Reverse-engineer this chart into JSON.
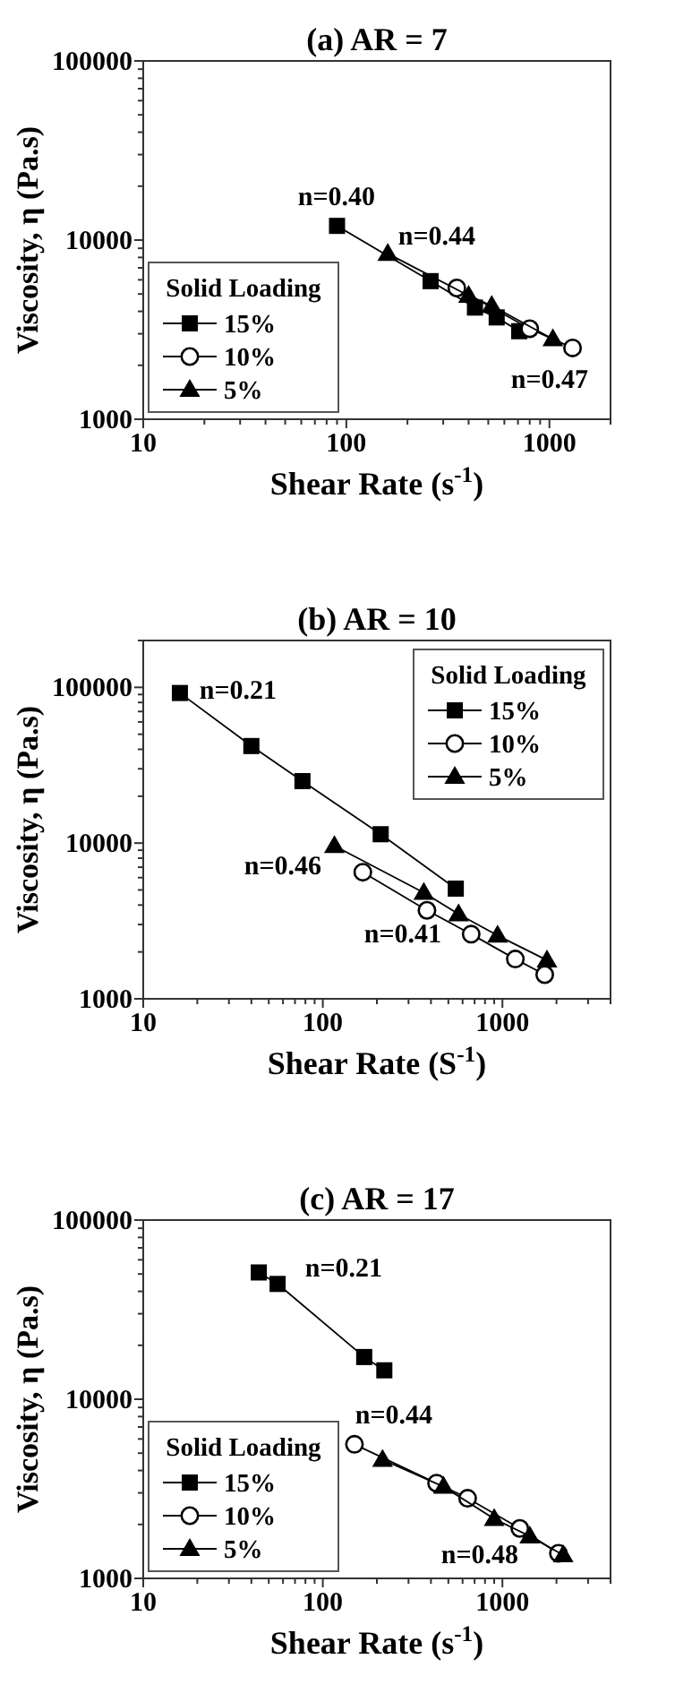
{
  "chart_data": [
    {
      "type": "line",
      "title": "(a) AR = 7",
      "xlabel": "Shear Rate (s$^{-1}$)",
      "ylabel": "Viscosity, η (Pa.s)",
      "legend_title": "Solid Loading",
      "legend": "bottom left",
      "log": "xy",
      "xlim": [
        10,
        2000
      ],
      "ylim": [
        1000,
        100000
      ],
      "xticks": [
        10,
        {
          "value": 20,
          "label": null
        },
        {
          "value": 30,
          "label": null
        },
        {
          "value": 40,
          "label": null
        },
        {
          "value": 50,
          "label": null
        },
        {
          "value": 60,
          "label": null
        },
        {
          "value": 70,
          "label": null
        },
        {
          "value": 80,
          "label": null
        },
        {
          "value": 90,
          "label": null
        },
        100,
        {
          "value": 200,
          "label": null
        },
        {
          "value": 300,
          "label": null
        },
        {
          "value": 400,
          "label": null
        },
        {
          "value": 500,
          "label": null
        },
        {
          "value": 600,
          "label": null
        },
        {
          "value": 700,
          "label": null
        },
        {
          "value": 800,
          "label": null
        },
        {
          "value": 900,
          "label": null
        },
        1000,
        {
          "value": 2000,
          "label": null
        }
      ],
      "yticks": [
        1000,
        {
          "value": 2000,
          "label": null
        },
        {
          "value": 3000,
          "label": null
        },
        {
          "value": 4000,
          "label": null
        },
        {
          "value": 5000,
          "label": null
        },
        {
          "value": 6000,
          "label": null
        },
        {
          "value": 7000,
          "label": null
        },
        {
          "value": 8000,
          "label": null
        },
        {
          "value": 9000,
          "label": null
        },
        10000,
        {
          "value": 20000,
          "label": null
        },
        {
          "value": 30000,
          "label": null
        },
        {
          "value": 40000,
          "label": null
        },
        {
          "value": 50000,
          "label": null
        },
        {
          "value": 60000,
          "label": null
        },
        {
          "value": 70000,
          "label": null
        },
        {
          "value": 80000,
          "label": null
        },
        {
          "value": 90000,
          "label": null
        },
        100000
      ],
      "series": [
        {
          "name": "15%",
          "color": "#000000",
          "marker": "square",
          "x": [
            90,
            260,
            430,
            550,
            710
          ],
          "values": [
            12000,
            5900,
            4200,
            3700,
            3100
          ]
        },
        {
          "name": "10%",
          "color": "#000000",
          "marker": "circle",
          "x": [
            350,
            800,
            1300
          ],
          "values": [
            5400,
            3200,
            2500
          ]
        },
        {
          "name": "5%",
          "color": "#000000",
          "marker": "triangle",
          "x": [
            160,
            400,
            520,
            1040
          ],
          "values": [
            8400,
            4900,
            4300,
            2800
          ]
        }
      ],
      "annotations": [
        "n=0.40",
        "n=0.44",
        "n=0.47"
      ]
    },
    {
      "type": "line",
      "title": "(b) AR = 10",
      "xlabel": "Shear Rate (S$^{-1}$)",
      "ylabel": "Viscosity, η (Pa.s)",
      "legend_title": "Solid Loading",
      "legend": "top right",
      "log": "xy",
      "xlim": [
        10,
        4000
      ],
      "ylim": [
        1000,
        200000
      ],
      "xticks": [
        10,
        {
          "value": 20,
          "label": null
        },
        {
          "value": 30,
          "label": null
        },
        {
          "value": 40,
          "label": null
        },
        {
          "value": 50,
          "label": null
        },
        {
          "value": 60,
          "label": null
        },
        {
          "value": 70,
          "label": null
        },
        {
          "value": 80,
          "label": null
        },
        {
          "value": 90,
          "label": null
        },
        100,
        {
          "value": 200,
          "label": null
        },
        {
          "value": 300,
          "label": null
        },
        {
          "value": 400,
          "label": null
        },
        {
          "value": 500,
          "label": null
        },
        {
          "value": 600,
          "label": null
        },
        {
          "value": 700,
          "label": null
        },
        {
          "value": 800,
          "label": null
        },
        {
          "value": 900,
          "label": null
        },
        1000,
        {
          "value": 2000,
          "label": null
        },
        {
          "value": 3000,
          "label": null
        },
        {
          "value": 4000,
          "label": null
        }
      ],
      "yticks": [
        1000,
        {
          "value": 2000,
          "label": null
        },
        {
          "value": 3000,
          "label": null
        },
        {
          "value": 4000,
          "label": null
        },
        {
          "value": 5000,
          "label": null
        },
        {
          "value": 6000,
          "label": null
        },
        {
          "value": 7000,
          "label": null
        },
        {
          "value": 8000,
          "label": null
        },
        {
          "value": 9000,
          "label": null
        },
        10000,
        {
          "value": 20000,
          "label": null
        },
        {
          "value": 30000,
          "label": null
        },
        {
          "value": 40000,
          "label": null
        },
        {
          "value": 50000,
          "label": null
        },
        {
          "value": 60000,
          "label": null
        },
        {
          "value": 70000,
          "label": null
        },
        {
          "value": 80000,
          "label": null
        },
        {
          "value": 90000,
          "label": null
        },
        100000,
        {
          "value": 200000,
          "label": null
        }
      ],
      "series": [
        {
          "name": "15%",
          "color": "#000000",
          "marker": "square",
          "x": [
            16,
            40,
            77,
            210,
            550
          ],
          "values": [
            92000,
            42000,
            25000,
            11400,
            5100
          ]
        },
        {
          "name": "10%",
          "color": "#000000",
          "marker": "circle",
          "x": [
            167,
            380,
            670,
            1180,
            1720
          ],
          "values": [
            6500,
            3700,
            2600,
            1800,
            1430
          ]
        },
        {
          "name": "5%",
          "color": "#000000",
          "marker": "triangle",
          "x": [
            116,
            365,
            570,
            940,
            1770
          ],
          "values": [
            9600,
            4800,
            3500,
            2550,
            1770
          ]
        }
      ],
      "annotations": [
        "n=0.21",
        "n=0.46",
        "n=0.41"
      ]
    },
    {
      "type": "line",
      "title": "(c) AR = 17",
      "xlabel": "Shear Rate (s$^{-1}$)",
      "ylabel": "Viscosity, η (Pa.s)",
      "legend_title": "Solid Loading",
      "legend": "bottom left",
      "log": "xy",
      "xlim": [
        10,
        4000
      ],
      "ylim": [
        1000,
        100000
      ],
      "xticks": [
        10,
        {
          "value": 20,
          "label": null
        },
        {
          "value": 30,
          "label": null
        },
        {
          "value": 40,
          "label": null
        },
        {
          "value": 50,
          "label": null
        },
        {
          "value": 60,
          "label": null
        },
        {
          "value": 70,
          "label": null
        },
        {
          "value": 80,
          "label": null
        },
        {
          "value": 90,
          "label": null
        },
        100,
        {
          "value": 200,
          "label": null
        },
        {
          "value": 300,
          "label": null
        },
        {
          "value": 400,
          "label": null
        },
        {
          "value": 500,
          "label": null
        },
        {
          "value": 600,
          "label": null
        },
        {
          "value": 700,
          "label": null
        },
        {
          "value": 800,
          "label": null
        },
        {
          "value": 900,
          "label": null
        },
        1000,
        {
          "value": 2000,
          "label": null
        },
        {
          "value": 3000,
          "label": null
        },
        {
          "value": 4000,
          "label": null
        }
      ],
      "yticks": [
        1000,
        {
          "value": 2000,
          "label": null
        },
        {
          "value": 3000,
          "label": null
        },
        {
          "value": 4000,
          "label": null
        },
        {
          "value": 5000,
          "label": null
        },
        {
          "value": 6000,
          "label": null
        },
        {
          "value": 7000,
          "label": null
        },
        {
          "value": 8000,
          "label": null
        },
        {
          "value": 9000,
          "label": null
        },
        10000,
        {
          "value": 20000,
          "label": null
        },
        {
          "value": 30000,
          "label": null
        },
        {
          "value": 40000,
          "label": null
        },
        {
          "value": 50000,
          "label": null
        },
        {
          "value": 60000,
          "label": null
        },
        {
          "value": 70000,
          "label": null
        },
        {
          "value": 80000,
          "label": null
        },
        {
          "value": 90000,
          "label": null
        },
        100000
      ],
      "series": [
        {
          "name": "15%",
          "color": "#000000",
          "marker": "square",
          "x": [
            44,
            56,
            170,
            220
          ],
          "values": [
            51000,
            44000,
            17200,
            14500
          ]
        },
        {
          "name": "10%",
          "color": "#000000",
          "marker": "circle",
          "x": [
            150,
            430,
            640,
            1250,
            2050
          ],
          "values": [
            5600,
            3400,
            2800,
            1900,
            1380
          ]
        },
        {
          "name": "5%",
          "color": "#000000",
          "marker": "triangle",
          "x": [
            215,
            470,
            900,
            1420,
            2180
          ],
          "values": [
            4600,
            3250,
            2150,
            1720,
            1350
          ]
        }
      ],
      "annotations": [
        "n=0.21",
        "n=0.44",
        "n=0.48"
      ]
    }
  ]
}
